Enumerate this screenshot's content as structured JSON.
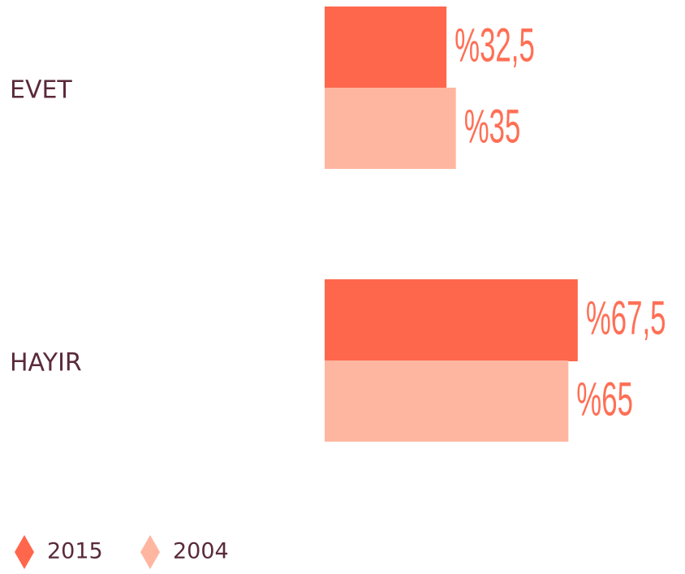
{
  "chart_data": {
    "type": "bar",
    "orientation": "horizontal",
    "categories": [
      "EVET",
      "HAYIR"
    ],
    "series": [
      {
        "name": "2015",
        "color": "#ff674d",
        "values": [
          32.5,
          67.5
        ],
        "value_labels": [
          "%32,5",
          "%67,5"
        ]
      },
      {
        "name": "2004",
        "color": "#ffb6a0",
        "values": [
          35,
          65
        ],
        "value_labels": [
          "%35",
          "%65"
        ]
      }
    ]
  }
}
